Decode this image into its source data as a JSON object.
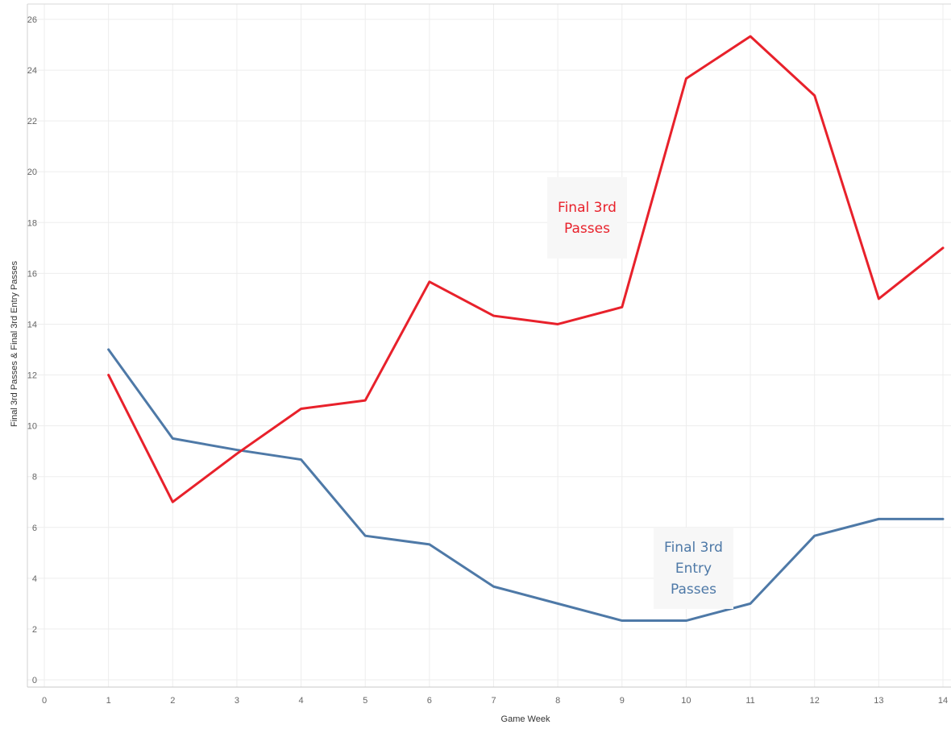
{
  "chart_data": {
    "type": "line",
    "title": "",
    "xlabel": "Game Week",
    "ylabel": "Final 3rd Passes & Final 3rd Entry Passes",
    "xlim": [
      0,
      14
    ],
    "ylim": [
      0,
      26
    ],
    "x_ticks": [
      "0",
      "1",
      "2",
      "3",
      "4",
      "5",
      "6",
      "7",
      "8",
      "9",
      "10",
      "11",
      "12",
      "13",
      "14"
    ],
    "y_ticks": [
      "0",
      "2",
      "4",
      "6",
      "8",
      "10",
      "12",
      "14",
      "16",
      "18",
      "20",
      "22",
      "24",
      "26"
    ],
    "grid": true,
    "x": [
      1,
      2,
      3,
      4,
      5,
      6,
      7,
      8,
      9,
      10,
      11,
      12,
      13,
      14
    ],
    "series": [
      {
        "name": "Final 3rd Passes",
        "color": "#e8212b",
        "values": [
          12,
          7,
          8.9,
          10.67,
          11,
          15.67,
          14.33,
          14,
          14.67,
          23.67,
          25.33,
          23,
          15,
          17
        ]
      },
      {
        "name": "Final 3rd Entry Passes",
        "color": "#4e79a7",
        "values": [
          13,
          9.5,
          9.05,
          8.67,
          5.67,
          5.33,
          3.67,
          3,
          2.33,
          2.33,
          3,
          5.67,
          6.33,
          6.33
        ]
      }
    ],
    "annotations": [
      {
        "text": "Final 3rd\nPasses",
        "color": "#e8212b"
      },
      {
        "text": "Final 3rd\nEntry\nPasses",
        "color": "#4e79a7"
      }
    ]
  }
}
